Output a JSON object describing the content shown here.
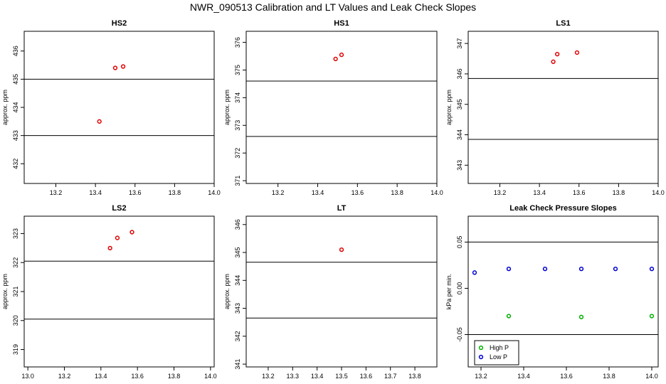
{
  "title": "NWR_090513  Calibration and LT Values and Leak Check Slopes",
  "chart_data": [
    {
      "type": "scatter",
      "title": "HS2",
      "xlabel": "",
      "ylabel": "approx. ppm",
      "xlim": [
        13.04,
        14.0
      ],
      "ylim": [
        431.3,
        436.7
      ],
      "x_ticks": [
        "13.2",
        "13.4",
        "13.6",
        "13.8",
        "14.0"
      ],
      "y_ticks": [
        "432",
        "433",
        "434",
        "435",
        "436"
      ],
      "hlines": [
        435.0,
        433.0
      ],
      "series": [
        {
          "color": "#e00000",
          "marker": "circle",
          "points": [
            [
              13.42,
              433.5
            ],
            [
              13.5,
              435.4
            ],
            [
              13.54,
              435.45
            ]
          ]
        }
      ]
    },
    {
      "type": "scatter",
      "title": "HS1",
      "xlabel": "",
      "ylabel": "approx. ppm",
      "xlim": [
        13.04,
        14.0
      ],
      "ylim": [
        370.9,
        376.4
      ],
      "x_ticks": [
        "13.2",
        "13.4",
        "13.6",
        "13.8",
        "14.0"
      ],
      "y_ticks": [
        "371",
        "372",
        "373",
        "374",
        "375",
        "376"
      ],
      "hlines": [
        374.6,
        372.6
      ],
      "series": [
        {
          "color": "#e00000",
          "marker": "circle",
          "points": [
            [
              13.49,
              375.4
            ],
            [
              13.52,
              375.55
            ]
          ]
        }
      ]
    },
    {
      "type": "scatter",
      "title": "LS1",
      "xlabel": "",
      "ylabel": "approx. ppm",
      "xlim": [
        13.04,
        14.0
      ],
      "ylim": [
        342.4,
        347.4
      ],
      "x_ticks": [
        "13.2",
        "13.4",
        "13.6",
        "13.8",
        "14.0"
      ],
      "y_ticks": [
        "343",
        "344",
        "345",
        "346",
        "347"
      ],
      "hlines": [
        345.85,
        343.85
      ],
      "series": [
        {
          "color": "#e00000",
          "marker": "circle",
          "points": [
            [
              13.47,
              346.4
            ],
            [
              13.49,
              346.65
            ],
            [
              13.59,
              346.7
            ]
          ]
        }
      ]
    },
    {
      "type": "scatter",
      "title": "LS2",
      "xlabel": "",
      "ylabel": "approx. ppm",
      "xlim": [
        12.98,
        14.02
      ],
      "ylim": [
        318.4,
        323.6
      ],
      "x_ticks": [
        "13.0",
        "13.2",
        "13.4",
        "13.6",
        "13.8",
        "14.0"
      ],
      "y_ticks": [
        "319",
        "320",
        "321",
        "322",
        "323"
      ],
      "hlines": [
        322.05,
        320.05
      ],
      "series": [
        {
          "color": "#e00000",
          "marker": "circle",
          "points": [
            [
              13.45,
              322.5
            ],
            [
              13.49,
              322.85
            ],
            [
              13.57,
              323.05
            ]
          ]
        }
      ]
    },
    {
      "type": "scatter",
      "title": "LT",
      "xlabel": "",
      "ylabel": "approx. ppm",
      "xlim": [
        13.11,
        13.89
      ],
      "ylim": [
        340.9,
        346.3
      ],
      "x_ticks": [
        "13.2",
        "13.3",
        "13.4",
        "13.5",
        "13.6",
        "13.7",
        "13.8"
      ],
      "y_ticks": [
        "341",
        "342",
        "343",
        "344",
        "345",
        "346"
      ],
      "hlines": [
        344.65,
        342.65
      ],
      "series": [
        {
          "color": "#e00000",
          "marker": "circle",
          "points": [
            [
              13.5,
              345.1
            ]
          ]
        }
      ]
    },
    {
      "type": "scatter",
      "title": "Leak Check Pressure Slopes",
      "xlabel": "",
      "ylabel": "kPa per min.",
      "xlim": [
        13.14,
        14.03
      ],
      "ylim": [
        -0.085,
        0.078
      ],
      "x_ticks": [
        "13.2",
        "13.4",
        "13.6",
        "13.8",
        "14.0"
      ],
      "y_ticks": [
        "-0.05",
        "0.00",
        "0.05"
      ],
      "hlines": [
        0.05,
        -0.05
      ],
      "legend_position": "bottom-left",
      "series": [
        {
          "name": "High P",
          "color": "#00b000",
          "marker": "circle",
          "points": [
            [
              13.33,
              -0.03
            ],
            [
              13.67,
              -0.031
            ],
            [
              14.0,
              -0.03
            ]
          ]
        },
        {
          "name": "Low P",
          "color": "#0000d0",
          "marker": "circle",
          "points": [
            [
              13.17,
              0.017
            ],
            [
              13.33,
              0.021
            ],
            [
              13.5,
              0.021
            ],
            [
              13.67,
              0.021
            ],
            [
              13.83,
              0.021
            ],
            [
              14.0,
              0.021
            ]
          ]
        }
      ]
    }
  ]
}
